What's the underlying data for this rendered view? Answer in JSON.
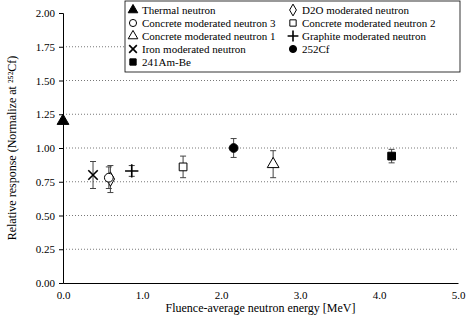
{
  "chart_data": {
    "type": "scatter",
    "x_label": "Fluence-average neutron energy [MeV]",
    "y_label": "Relative response  (Normalize at ²⁵²Cf)",
    "xlim": [
      0,
      5
    ],
    "xticks": [
      {
        "value": 0,
        "label": "0.0"
      },
      {
        "value": 1,
        "label": "1.0"
      },
      {
        "value": 2,
        "label": "2.0"
      },
      {
        "value": 3,
        "label": "3.0"
      },
      {
        "value": 4,
        "label": "4.0"
      },
      {
        "value": 5,
        "label": "5.0"
      }
    ],
    "ylim": [
      0,
      2
    ],
    "yticks": [
      {
        "value": 0,
        "label": "0.00"
      },
      {
        "value": 0.25,
        "label": "0.25"
      },
      {
        "value": 0.5,
        "label": "0.50"
      },
      {
        "value": 0.75,
        "label": "0.75"
      },
      {
        "value": 1,
        "label": "1.00"
      },
      {
        "value": 1.25,
        "label": "1.25"
      },
      {
        "value": 1.5,
        "label": "1.50"
      },
      {
        "value": 1.75,
        "label": "1.75"
      },
      {
        "value": 2,
        "label": "2.00"
      }
    ],
    "grid": true,
    "legend": "top-right",
    "series": [
      {
        "name": "Thermal neutron",
        "color": "#000000",
        "marker": "triangle",
        "x": [
          0.0
        ],
        "values": [
          1.2
        ]
      },
      {
        "name": "D2O moderated neutron",
        "color": "#000000",
        "marker": "diamond-open",
        "x": [
          0.6
        ],
        "values": [
          0.77
        ],
        "errors": [
          0.1
        ]
      },
      {
        "name": "Concrete moderated neutron 3",
        "color": "#000000",
        "marker": "circle-open",
        "x": [
          0.58
        ],
        "values": [
          0.78
        ],
        "errors": [
          0.08
        ]
      },
      {
        "name": "Concrete moderated neutron 2",
        "color": "#000000",
        "marker": "square-open",
        "x": [
          1.52
        ],
        "values": [
          0.86
        ],
        "errors": [
          0.08
        ]
      },
      {
        "name": "Concrete moderated neutron 1",
        "color": "#000000",
        "marker": "triangle-open",
        "x": [
          2.66
        ],
        "values": [
          0.88
        ],
        "errors": [
          0.1
        ]
      },
      {
        "name": "Graphite moderated neutron",
        "color": "#000000",
        "marker": "plus",
        "x": [
          0.87
        ],
        "values": [
          0.83
        ],
        "errors": [
          0.04
        ]
      },
      {
        "name": "Iron moderated neutron",
        "color": "#000000",
        "marker": "x",
        "x": [
          0.38
        ],
        "values": [
          0.8
        ],
        "errors": [
          0.1
        ]
      },
      {
        "name": "252Cf",
        "color": "#000000",
        "marker": "circle",
        "x": [
          2.16
        ],
        "values": [
          1.0
        ],
        "errors": [
          0.07
        ]
      },
      {
        "name": "241Am-Be",
        "color": "#000000",
        "marker": "square",
        "x": [
          4.16
        ],
        "values": [
          0.94
        ],
        "errors": [
          0.05
        ]
      }
    ]
  }
}
